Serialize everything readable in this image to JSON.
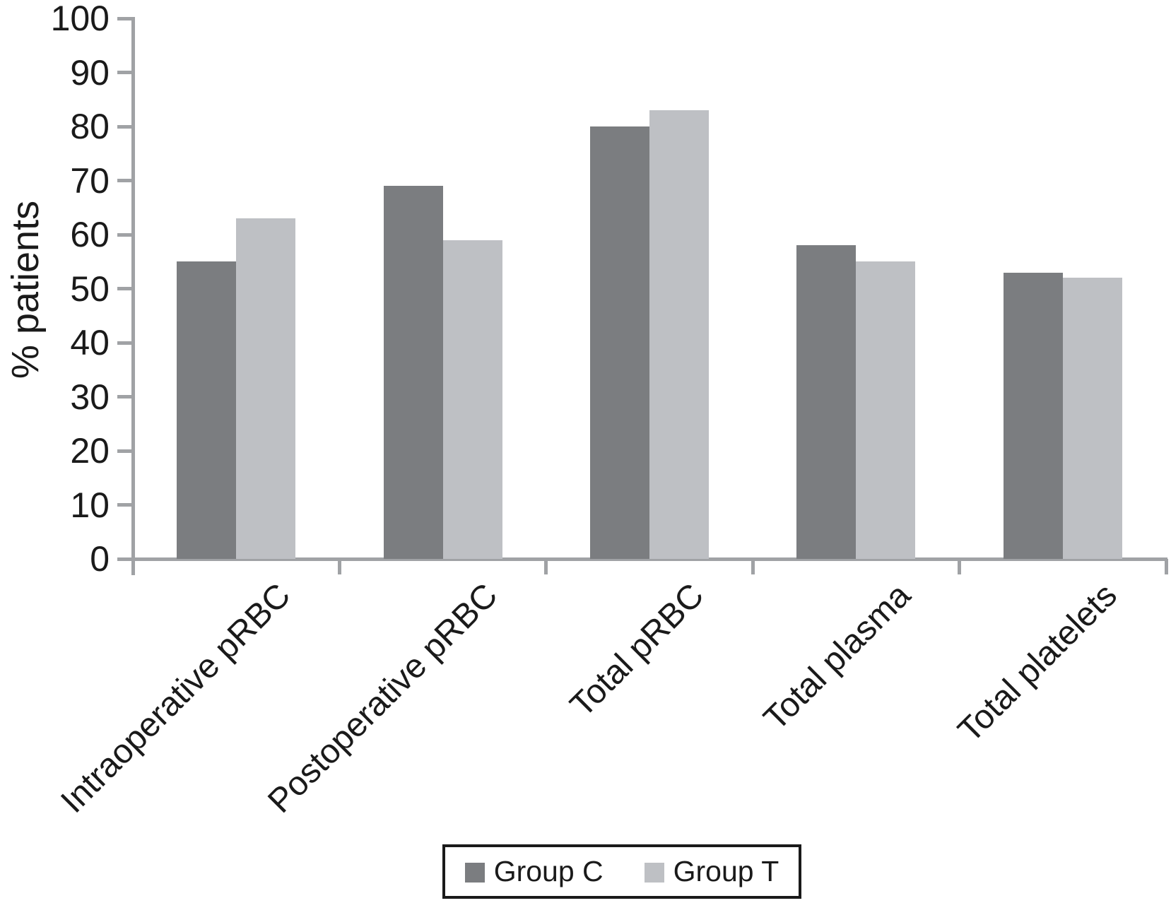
{
  "chart_data": {
    "type": "bar",
    "title": "",
    "xlabel": "",
    "ylabel": "% patients",
    "ylim": [
      0,
      100
    ],
    "ytick_step": 10,
    "ytick_labels": [
      "0",
      "10",
      "20",
      "30",
      "40",
      "50",
      "60",
      "70",
      "80",
      "90",
      "100"
    ],
    "grid": false,
    "legend_position": "bottom",
    "categories": [
      "Intraoperative pRBC",
      "Postoperative pRBC",
      "Total pRBC",
      "Total plasma",
      "Total platelets"
    ],
    "series": [
      {
        "name": "Group C",
        "color": "#7b7d80",
        "values": [
          55,
          69,
          80,
          58,
          53
        ]
      },
      {
        "name": "Group T",
        "color": "#bec0c4",
        "values": [
          63,
          59,
          83,
          55,
          52
        ]
      }
    ],
    "axis_color": "#a0a2a5",
    "text_color": "#1a1a1a"
  }
}
